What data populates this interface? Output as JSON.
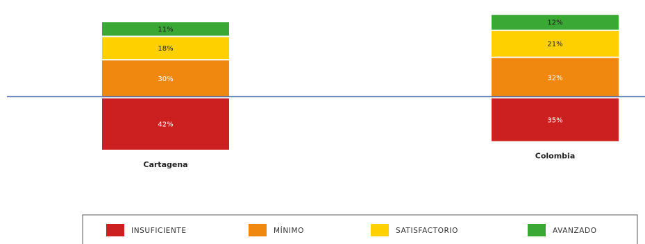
{
  "chart_data": {
    "type": "bar",
    "stacked": "diverging",
    "categories": [
      "Cartagena",
      "Colombia"
    ],
    "series": [
      {
        "name": "INSUFICIENTE",
        "values": [
          42,
          35
        ],
        "color": "#cc1f1f",
        "label_color": "#ffffff",
        "below_baseline": true
      },
      {
        "name": "MÍNIMO",
        "values": [
          30,
          32
        ],
        "color": "#f0870f",
        "label_color": "#ffffff",
        "below_baseline": false
      },
      {
        "name": "SATISFACTORIO",
        "values": [
          18,
          21
        ],
        "color": "#ffd000",
        "label_color": "#222222",
        "below_baseline": false
      },
      {
        "name": "AVANZADO",
        "values": [
          11,
          12
        ],
        "color": "#3aa835",
        "label_color": "#222222",
        "below_baseline": false
      }
    ],
    "unit": "%",
    "legend_position": "bottom",
    "baseline_color": "#4a6fb5",
    "grid": false
  }
}
